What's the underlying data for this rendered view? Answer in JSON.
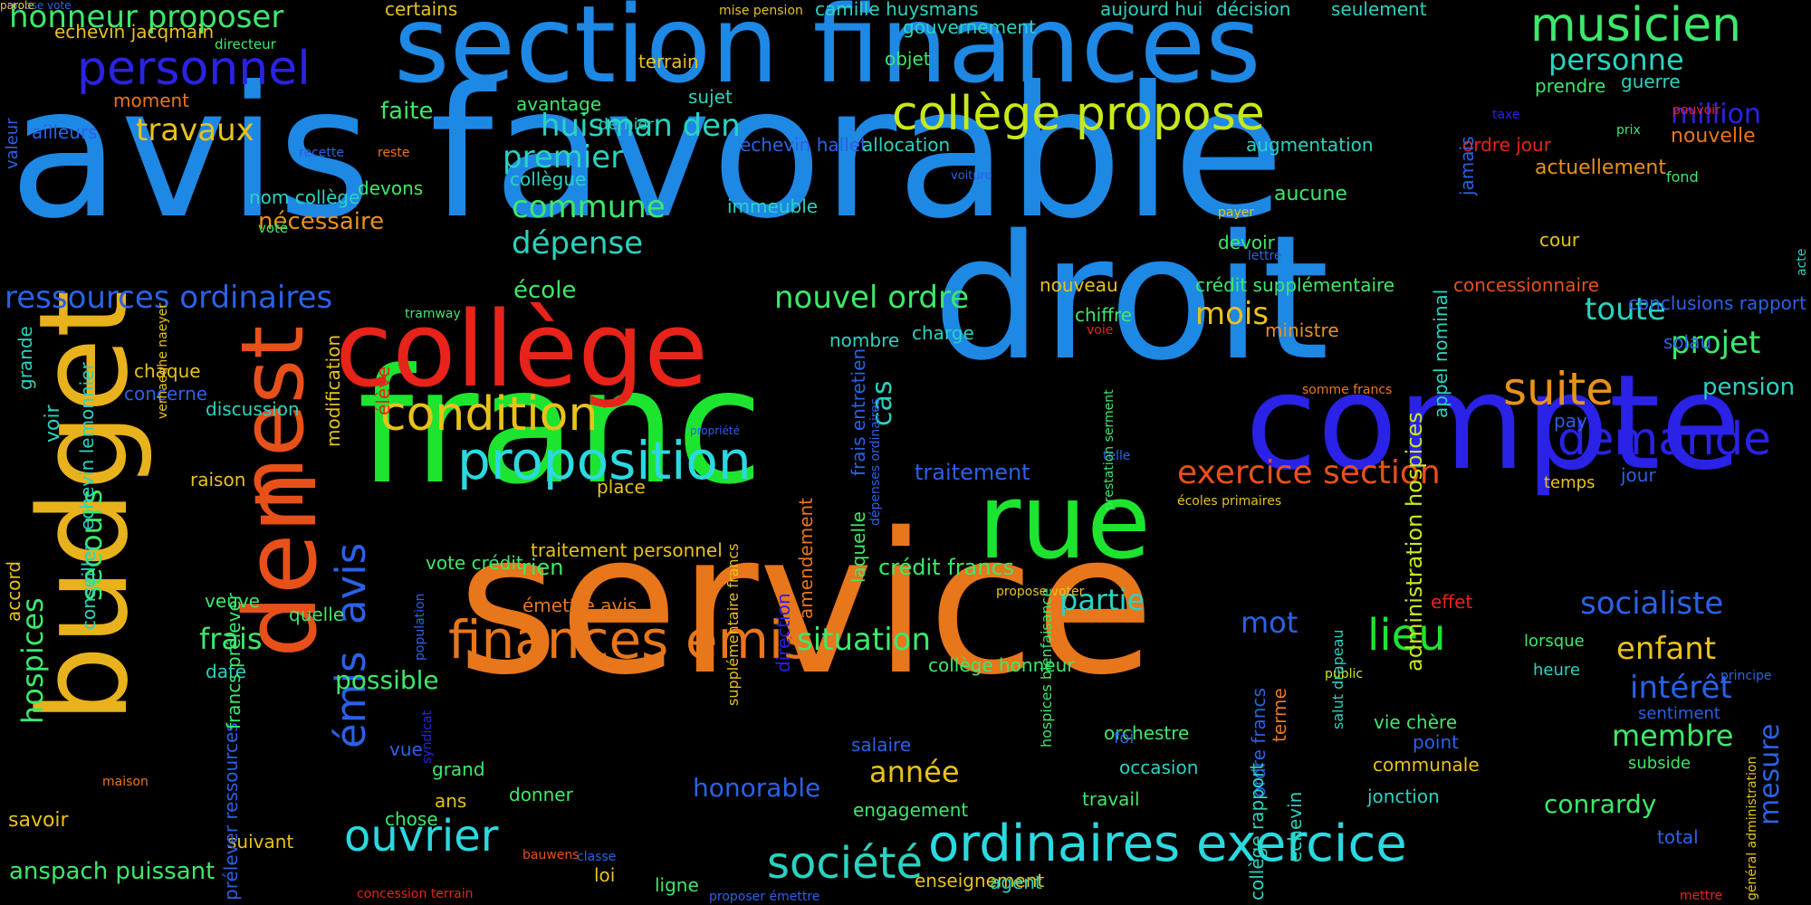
{
  "palette": {
    "background": "#000000",
    "blue": "#1e88e5",
    "lightblue": "#2196f3",
    "indigo": "#2a22e6",
    "green": "#1de52f",
    "lightgreen": "#3de86b",
    "teal": "#2ad3c0",
    "cyan": "#2bd9e0",
    "yellow": "#e8e21a",
    "gold": "#e8b21c",
    "orange": "#e8761a",
    "red": "#e8231a",
    "lime": "#a8e81a"
  },
  "words": [
    {
      "text": "service",
      "c": "#e8761a"
    },
    {
      "text": "avis favorable",
      "c": "#1e88e5"
    },
    {
      "text": "droit",
      "c": "#1e88e5"
    },
    {
      "text": "franc",
      "c": "#1de52f"
    },
    {
      "text": "section finances",
      "c": "#1e88e5"
    },
    {
      "text": "compte",
      "c": "#2a22e6"
    },
    {
      "text": "budget",
      "c": "#e8b21c"
    },
    {
      "text": "collège",
      "c": "#e8231a"
    },
    {
      "text": "rue",
      "c": "#1de52f"
    },
    {
      "text": "den",
      "c": "#e8501a"
    },
    {
      "text": "nest",
      "c": "#e8501a"
    },
    {
      "text": "ordinaires exercice",
      "c": "#2bd9e0"
    },
    {
      "text": "finances émis",
      "c": "#e8761a"
    },
    {
      "text": "proposition",
      "c": "#2bd9e0"
    },
    {
      "text": "condition",
      "c": "#e8c21a"
    },
    {
      "text": "collège propose",
      "c": "#c8e81a"
    },
    {
      "text": "musicien",
      "c": "#3de86b"
    },
    {
      "text": "personnel",
      "c": "#2a22e6"
    },
    {
      "text": "demande",
      "c": "#2a22e6"
    },
    {
      "text": "suite",
      "c": "#e8921a"
    },
    {
      "text": "société",
      "c": "#2ad3c0"
    },
    {
      "text": "ouvrier",
      "c": "#2bd9e0"
    },
    {
      "text": "lieu",
      "c": "#1de52f"
    },
    {
      "text": "avis",
      "c": "#2a62e6"
    },
    {
      "text": "émis",
      "c": "#2a62e6"
    },
    {
      "text": "exercice section",
      "c": "#e8501a"
    },
    {
      "text": "honneur proposer",
      "c": "#3de86b"
    },
    {
      "text": "ressources ordinaires",
      "c": "#2a62e6"
    },
    {
      "text": "huisman den",
      "c": "#2ad3c0"
    },
    {
      "text": "socialiste",
      "c": "#2a62e6"
    },
    {
      "text": "nouvel ordre",
      "c": "#3de86b"
    },
    {
      "text": "commune",
      "c": "#3de86b"
    },
    {
      "text": "dépense",
      "c": "#2ad3c0"
    },
    {
      "text": "premier",
      "c": "#2ad3c0"
    },
    {
      "text": "travaux",
      "c": "#e8c21a"
    },
    {
      "text": "situation",
      "c": "#3de86b"
    },
    {
      "text": "intérêt",
      "c": "#2a62e6"
    },
    {
      "text": "membre",
      "c": "#3de86b"
    },
    {
      "text": "enfant",
      "c": "#e8c21a"
    },
    {
      "text": "projet",
      "c": "#3de86b"
    },
    {
      "text": "toute",
      "c": "#2ad3c0"
    },
    {
      "text": "mois",
      "c": "#e8c21a"
    },
    {
      "text": "personne",
      "c": "#2ad3c0"
    },
    {
      "text": "partie",
      "c": "#2ad3c0"
    },
    {
      "text": "mot",
      "c": "#2a62e6"
    },
    {
      "text": "année",
      "c": "#e8c21a"
    },
    {
      "text": "hospices",
      "c": "#3de86b"
    },
    {
      "text": "secours",
      "c": "#3de86b"
    },
    {
      "text": "frais",
      "c": "#3de86b"
    },
    {
      "text": "anspach puissant",
      "c": "#3de86b"
    },
    {
      "text": "possible",
      "c": "#3de86b"
    },
    {
      "text": "mesure",
      "c": "#2a62e6"
    },
    {
      "text": "conrardy",
      "c": "#3de86b"
    },
    {
      "text": "honorable",
      "c": "#2a62e6"
    },
    {
      "text": "million",
      "c": "#2a22e6"
    },
    {
      "text": "cas",
      "c": "#2ad3c0"
    },
    {
      "text": "école",
      "c": "#3de86b"
    },
    {
      "text": "nécessaire",
      "c": "#e8921a"
    },
    {
      "text": "faite",
      "c": "#3de86b"
    },
    {
      "text": "moment",
      "c": "#e8761a"
    },
    {
      "text": "echevin jacqmain",
      "c": "#e8c21a"
    },
    {
      "text": "traitement",
      "c": "#2a62e6"
    },
    {
      "text": "crédit francs",
      "c": "#3de86b"
    },
    {
      "text": "collège honneur",
      "c": "#3de86b"
    },
    {
      "text": "administration hospices",
      "c": "#c8e81a"
    },
    {
      "text": "crédit supplémentaire",
      "c": "#3de86b"
    },
    {
      "text": "concessionnaire",
      "c": "#e8501a"
    },
    {
      "text": "conclusions rapport",
      "c": "#2a62e6"
    },
    {
      "text": "nouvelle",
      "c": "#e8761a"
    },
    {
      "text": "ordre jour",
      "c": "#e8231a"
    },
    {
      "text": "actuellement",
      "c": "#e8921a"
    },
    {
      "text": "cour",
      "c": "#e8c21a"
    },
    {
      "text": "temps",
      "c": "#e8c21a"
    },
    {
      "text": "pension",
      "c": "#2ad3c0"
    },
    {
      "text": "jour",
      "c": "#2a62e6"
    },
    {
      "text": "prendre",
      "c": "#3de86b"
    },
    {
      "text": "guerre",
      "c": "#2ad3c0"
    },
    {
      "text": "aujourd hui",
      "c": "#2ad3c0"
    },
    {
      "text": "décision",
      "c": "#2ad3c0"
    },
    {
      "text": "seulement",
      "c": "#2ad3c0"
    },
    {
      "text": "camille huysmans",
      "c": "#2ad3c0"
    },
    {
      "text": "certains",
      "c": "#e8c21a"
    },
    {
      "text": "gouvernement",
      "c": "#2ad3c0"
    },
    {
      "text": "objet",
      "c": "#3de86b"
    },
    {
      "text": "avantage",
      "c": "#3de86b"
    },
    {
      "text": "terrain",
      "c": "#e8c21a"
    },
    {
      "text": "sujet",
      "c": "#2ad3c0"
    },
    {
      "text": "echevin hallet",
      "c": "#2a62e6"
    },
    {
      "text": "allocation",
      "c": "#2ad3c0"
    },
    {
      "text": "augmentation",
      "c": "#2ad3c0"
    },
    {
      "text": "ailleurs",
      "c": "#2a62e6"
    },
    {
      "text": "dernier",
      "c": "#2ad3c0"
    },
    {
      "text": "collègue",
      "c": "#2ad3c0"
    },
    {
      "text": "immeuble",
      "c": "#2ad3c0"
    },
    {
      "text": "aucune",
      "c": "#3de86b"
    },
    {
      "text": "devoir",
      "c": "#3de86b"
    },
    {
      "text": "nouveau",
      "c": "#e8c21a"
    },
    {
      "text": "chiffre",
      "c": "#3de86b"
    },
    {
      "text": "nombre",
      "c": "#2ad3c0"
    },
    {
      "text": "charge",
      "c": "#2ad3c0"
    },
    {
      "text": "ministre",
      "c": "#e8921a"
    },
    {
      "text": "solau",
      "c": "#2a62e6"
    },
    {
      "text": "pay",
      "c": "#2a62e6"
    },
    {
      "text": "nom collège",
      "c": "#2ad3c0"
    },
    {
      "text": "devons",
      "c": "#3de86b"
    },
    {
      "text": "voté",
      "c": "#3de86b"
    },
    {
      "text": "chaque",
      "c": "#e8c21a"
    },
    {
      "text": "concerne",
      "c": "#2a62e6"
    },
    {
      "text": "discussion",
      "c": "#2ad3c0"
    },
    {
      "text": "voir",
      "c": "#2ad3c0"
    },
    {
      "text": "raison",
      "c": "#e8c21a"
    },
    {
      "text": "veuve",
      "c": "#3de86b"
    },
    {
      "text": "quelle",
      "c": "#3de86b"
    },
    {
      "text": "date",
      "c": "#2ad3c0"
    },
    {
      "text": "vote crédit",
      "c": "#3de86b"
    },
    {
      "text": "rien",
      "c": "#3de86b"
    },
    {
      "text": "place",
      "c": "#e8c21a"
    },
    {
      "text": "traitement personnel",
      "c": "#e8c21a"
    },
    {
      "text": "émettre avis",
      "c": "#e8761a"
    },
    {
      "text": "salaire",
      "c": "#2a62e6"
    },
    {
      "text": "orchestre",
      "c": "#3de86b"
    },
    {
      "text": "occasion",
      "c": "#2ad3c0"
    },
    {
      "text": "point",
      "c": "#2a62e6"
    },
    {
      "text": "vie chère",
      "c": "#3de86b"
    },
    {
      "text": "communale",
      "c": "#e8c21a"
    },
    {
      "text": "jonction",
      "c": "#2ad3c0"
    },
    {
      "text": "travail",
      "c": "#3de86b"
    },
    {
      "text": "engagement",
      "c": "#3de86b"
    },
    {
      "text": "enseignement",
      "c": "#e8c21a"
    },
    {
      "text": "agent",
      "c": "#2ad3c0"
    },
    {
      "text": "ligne",
      "c": "#3de86b"
    },
    {
      "text": "loi",
      "c": "#e8c21a"
    },
    {
      "text": "donner",
      "c": "#3de86b"
    },
    {
      "text": "ans",
      "c": "#e8c21a"
    },
    {
      "text": "grand",
      "c": "#3de86b"
    },
    {
      "text": "vue",
      "c": "#2a62e6"
    },
    {
      "text": "chose",
      "c": "#3de86b"
    },
    {
      "text": "suivant",
      "c": "#e8c21a"
    },
    {
      "text": "savoir",
      "c": "#e8c21a"
    },
    {
      "text": "effet",
      "c": "#e8231a"
    },
    {
      "text": "lorsque",
      "c": "#3de86b"
    },
    {
      "text": "heure",
      "c": "#2ad3c0"
    },
    {
      "text": "sentiment",
      "c": "#2a62e6"
    },
    {
      "text": "subside",
      "c": "#3de86b"
    },
    {
      "text": "total",
      "c": "#2a62e6"
    },
    {
      "text": "maison",
      "c": "#e8761a"
    },
    {
      "text": "classe",
      "c": "#2a62e6"
    },
    {
      "text": "bauwens",
      "c": "#e8501a"
    },
    {
      "text": "proposer émettre",
      "c": "#2a62e6"
    },
    {
      "text": "concession terrain",
      "c": "#e8231a"
    },
    {
      "text": "mettre",
      "c": "#e8231a"
    },
    {
      "text": "valeur",
      "c": "#2a62e6"
    },
    {
      "text": "directeur",
      "c": "#3de86b"
    },
    {
      "text": "mise pension",
      "c": "#e8c21a"
    },
    {
      "text": "recette",
      "c": "#2a62e6"
    },
    {
      "text": "reste",
      "c": "#e8761a"
    },
    {
      "text": "voiture",
      "c": "#2a62e6"
    },
    {
      "text": "payer",
      "c": "#e8c21a"
    },
    {
      "text": "lettre",
      "c": "#2a62e6"
    },
    {
      "text": "taxe",
      "c": "#2a22e6"
    },
    {
      "text": "pouvoir",
      "c": "#e8231a"
    },
    {
      "text": "fond",
      "c": "#3de86b"
    },
    {
      "text": "prix",
      "c": "#3de86b"
    },
    {
      "text": "acte",
      "c": "#2ad3c0"
    },
    {
      "text": "voie",
      "c": "#e8231a"
    },
    {
      "text": "tramway",
      "c": "#3de86b"
    },
    {
      "text": "somme francs",
      "c": "#e8761a"
    },
    {
      "text": "telle",
      "c": "#2a62e6"
    },
    {
      "text": "propriété",
      "c": "#2a62e6"
    },
    {
      "text": "écoles primaires",
      "c": "#e8c21a"
    },
    {
      "text": "propose voter",
      "c": "#e8c21a"
    },
    {
      "text": "public",
      "c": "#c8e81a"
    },
    {
      "text": "principe",
      "c": "#2a62e6"
    },
    {
      "text": "général administration",
      "c": "#e8c21a"
    },
    {
      "text": "population",
      "c": "#2a62e6"
    },
    {
      "text": "syndicat",
      "c": "#2a22e6"
    },
    {
      "text": "foi",
      "c": "#2a62e6"
    },
    {
      "text": "grande",
      "c": "#2ad3c0"
    },
    {
      "text": "accord",
      "c": "#e8c21a"
    },
    {
      "text": "echevin lemonnier",
      "c": "#2ad3c0"
    },
    {
      "text": "conseiller",
      "c": "#2ad3c0"
    },
    {
      "text": "prélever ressources",
      "c": "#2a62e6"
    },
    {
      "text": "francs prélever",
      "c": "#3de86b"
    },
    {
      "text": "verhaeghe naeyer",
      "c": "#e8c21a"
    },
    {
      "text": "modification",
      "c": "#e8c21a"
    },
    {
      "text": "élève",
      "c": "#e8231a"
    },
    {
      "text": "frais entretien",
      "c": "#2a62e6"
    },
    {
      "text": "dépenses ordinaires",
      "c": "#2a62e6"
    },
    {
      "text": "laquelle",
      "c": "#3de86b"
    },
    {
      "text": "amendement",
      "c": "#e8761a"
    },
    {
      "text": "supplémentaire francs",
      "c": "#e8c21a"
    },
    {
      "text": "direction",
      "c": "#2a22e6"
    },
    {
      "text": "jamais",
      "c": "#2a62e6"
    },
    {
      "text": "prestation serment",
      "c": "#3de86b"
    },
    {
      "text": "appel nominal",
      "c": "#2ad3c0"
    },
    {
      "text": "hospices bienfaisance",
      "c": "#3de86b"
    },
    {
      "text": "ordre francs",
      "c": "#2a62e6"
    },
    {
      "text": "collège rapport",
      "c": "#2ad3c0"
    },
    {
      "text": "terme",
      "c": "#e8761a"
    },
    {
      "text": "echevin",
      "c": "#2ad3c0"
    },
    {
      "text": "salut drapeau",
      "c": "#2ad3c0"
    },
    {
      "text": "propose vote",
      "c": "#2a62e6"
    },
    {
      "text": "parole",
      "c": "#e8c21a"
    }
  ]
}
